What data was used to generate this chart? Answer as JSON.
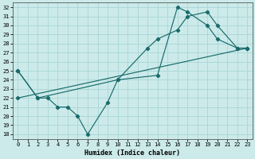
{
  "xlabel": "Humidex (Indice chaleur)",
  "xlim": [
    -0.5,
    23.5
  ],
  "ylim": [
    17.5,
    32.5
  ],
  "xticks": [
    0,
    1,
    2,
    3,
    4,
    5,
    6,
    7,
    8,
    9,
    10,
    11,
    12,
    13,
    14,
    15,
    16,
    17,
    18,
    19,
    20,
    21,
    22,
    23
  ],
  "yticks": [
    18,
    19,
    20,
    21,
    22,
    23,
    24,
    25,
    26,
    27,
    28,
    29,
    30,
    31,
    32
  ],
  "bg_color": "#cceaea",
  "grid_color": "#aed8d8",
  "line_color": "#1a6b6b",
  "line1": {
    "x": [
      0,
      2,
      3,
      4,
      5,
      6,
      7,
      9,
      10,
      14,
      16,
      17,
      19,
      20,
      22,
      23
    ],
    "y": [
      25,
      22,
      22,
      21,
      21,
      20,
      18,
      21.5,
      24,
      24.5,
      32,
      31.5,
      30,
      28.5,
      27.5,
      27.5
    ]
  },
  "line2": {
    "x": [
      0,
      2,
      10,
      13,
      14,
      16,
      17,
      19,
      20,
      22,
      23
    ],
    "y": [
      25,
      22,
      24,
      27.5,
      28.5,
      29.5,
      31,
      31.5,
      30,
      27.5,
      27.5
    ]
  },
  "line3": {
    "x": [
      0,
      23
    ],
    "y": [
      22,
      27.5
    ]
  }
}
